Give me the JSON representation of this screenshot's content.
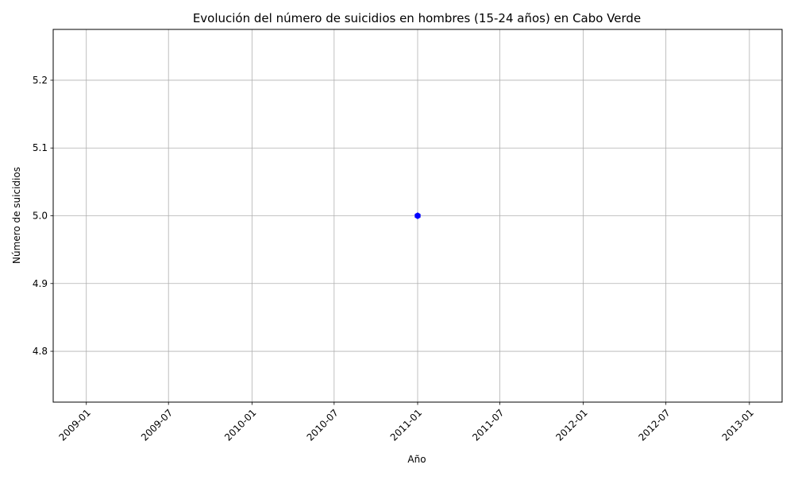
{
  "chart_data": {
    "type": "line",
    "title": "Evolución del número de suicidios en hombres (15-24 años) en Cabo Verde",
    "xlabel": "Año",
    "ylabel": "Número de suicidios",
    "x_axis_type": "date",
    "x_ticks": [
      "2009-01",
      "2009-07",
      "2010-01",
      "2010-07",
      "2011-01",
      "2011-07",
      "2012-01",
      "2012-07",
      "2013-01"
    ],
    "y_ticks": [
      "4.8",
      "4.9",
      "5.0",
      "5.1",
      "5.2"
    ],
    "ylim": [
      4.725,
      5.275
    ],
    "xlim": [
      "2008-10-20",
      "2013-03-14"
    ],
    "grid": true,
    "series": [
      {
        "color": "#0000ff",
        "marker": "hexagon",
        "x": [
          "2011-01-01"
        ],
        "values": [
          5.0
        ]
      }
    ]
  }
}
